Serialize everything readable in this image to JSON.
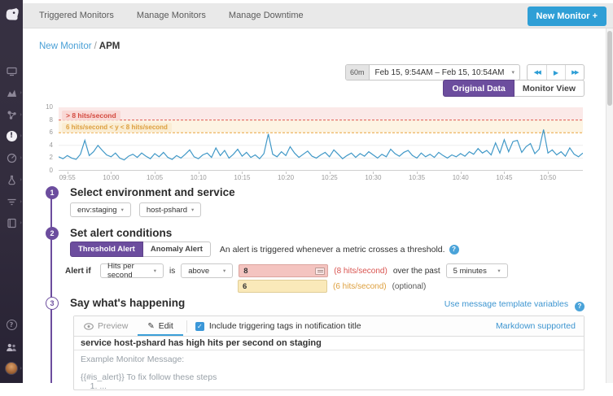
{
  "topnav": {
    "items": [
      "Triggered Monitors",
      "Manage Monitors",
      "Manage Downtime"
    ],
    "new_monitor_label": "New Monitor +"
  },
  "breadcrumb": {
    "link": "New Monitor",
    "separator": "/",
    "current": "APM"
  },
  "timebar": {
    "range_badge": "60m",
    "range_text": "Feb 15, 9:54AM – Feb 15, 10:54AM"
  },
  "view_toggle": {
    "original": "Original Data",
    "monitor": "Monitor View"
  },
  "chart_data": {
    "type": "line",
    "title": "",
    "xlabel": "",
    "ylabel": "",
    "ylim": [
      0,
      10
    ],
    "yticks": [
      0,
      2,
      4,
      6,
      8,
      10
    ],
    "x_total_minutes": 60,
    "x_start_label": "09:54",
    "x_ticks": [
      {
        "label": "09:55",
        "minute": 1
      },
      {
        "label": "10:00",
        "minute": 6
      },
      {
        "label": "10:05",
        "minute": 11
      },
      {
        "label": "10:10",
        "minute": 16
      },
      {
        "label": "10:15",
        "minute": 21
      },
      {
        "label": "10:20",
        "minute": 26
      },
      {
        "label": "10:25",
        "minute": 31
      },
      {
        "label": "10:30",
        "minute": 36
      },
      {
        "label": "10:35",
        "minute": 41
      },
      {
        "label": "10:40",
        "minute": 46
      },
      {
        "label": "10:45",
        "minute": 51
      },
      {
        "label": "10:50",
        "minute": 56
      }
    ],
    "alert_threshold": 8,
    "warning_threshold": 6,
    "alert_label": "> 8 hits/second",
    "warning_label": "6 hits/second < y < 8 hits/second",
    "series": [
      {
        "name": "Hits per second",
        "values": [
          2.2,
          1.9,
          2.4,
          2.0,
          1.8,
          2.6,
          4.8,
          2.4,
          3.0,
          4.0,
          3.2,
          2.5,
          2.2,
          2.8,
          2.0,
          1.7,
          2.3,
          2.6,
          2.1,
          2.8,
          2.3,
          1.9,
          2.7,
          2.2,
          2.9,
          2.1,
          1.8,
          2.4,
          2.0,
          2.6,
          3.3,
          2.2,
          1.9,
          2.5,
          2.8,
          2.1,
          3.6,
          2.4,
          3.2,
          2.0,
          2.6,
          3.4,
          2.3,
          2.9,
          2.1,
          2.5,
          1.9,
          2.7,
          5.8,
          2.6,
          2.2,
          3.0,
          2.4,
          3.8,
          2.8,
          2.1,
          2.6,
          3.1,
          2.3,
          2.0,
          2.5,
          2.9,
          2.2,
          3.3,
          2.6,
          1.9,
          2.4,
          2.8,
          2.1,
          2.7,
          2.3,
          3.0,
          2.5,
          2.0,
          2.6,
          2.2,
          3.4,
          2.7,
          2.3,
          2.9,
          3.2,
          2.4,
          2.0,
          2.8,
          2.2,
          2.6,
          2.1,
          2.9,
          2.4,
          2.0,
          2.5,
          2.2,
          2.7,
          2.3,
          3.0,
          2.6,
          3.5,
          2.8,
          3.2,
          2.5,
          4.4,
          2.8,
          4.9,
          3.0,
          4.6,
          4.8,
          2.9,
          3.8,
          4.3,
          2.7,
          3.4,
          6.5,
          2.8,
          3.3,
          2.5,
          3.0,
          2.3,
          3.6,
          2.6,
          2.2,
          2.8
        ]
      }
    ],
    "colors": {
      "line": "#4098c7",
      "alert_band": "#fbe9e8",
      "warning_band": "#fdf4e3",
      "alert_line": "#e05a50",
      "warning_line": "#e8a33d"
    }
  },
  "steps": {
    "one": {
      "number": "1",
      "title": "Select environment and service",
      "env_filter": "env:staging",
      "service_filter": "host-pshard"
    },
    "two": {
      "number": "2",
      "title": "Set alert conditions",
      "threshold_tab": "Threshold Alert",
      "anomaly_tab": "Anomaly Alert",
      "description": "An alert is triggered whenever a metric crosses a threshold.",
      "alert_if": "Alert if",
      "metric": "Hits per second",
      "is_label": "is",
      "comparator": "above",
      "alert_value": "8",
      "alert_annotation": "(8 hits/second)",
      "over_past": "over the past",
      "window": "5 minutes",
      "warn_value": "6",
      "warn_annotation": "(6 hits/second)",
      "optional_label": "(optional)"
    },
    "three": {
      "number": "3",
      "title": "Say what's happening",
      "template_link": "Use message template variables",
      "preview_tab": "Preview",
      "edit_tab": "Edit",
      "checkbox_label": "Include triggering tags in notification title",
      "markdown_link": "Markdown supported",
      "title_value": "service host-pshard has high hits per second on staging",
      "message_placeholder": "Example Monitor Message:\n\n{{#is_alert}} To fix follow these steps\n    1. ..."
    }
  },
  "icons": {
    "caret_down": "▾",
    "rewind": "◀◀",
    "play": "▶",
    "forward": "▶▶",
    "check": "✓",
    "pencil": "✎",
    "question": "?",
    "exclamation": "!",
    "chevron_right": "›"
  },
  "colors": {
    "accent_blue": "#2f9fd6",
    "link_blue": "#3d95d0",
    "accent_purple": "#6c4d9e",
    "alert_red": "#d9534f",
    "warning_orange": "#dd9f3d",
    "sidebar_bg": "#332d3e",
    "chart_line_blue": "#4098c7"
  }
}
